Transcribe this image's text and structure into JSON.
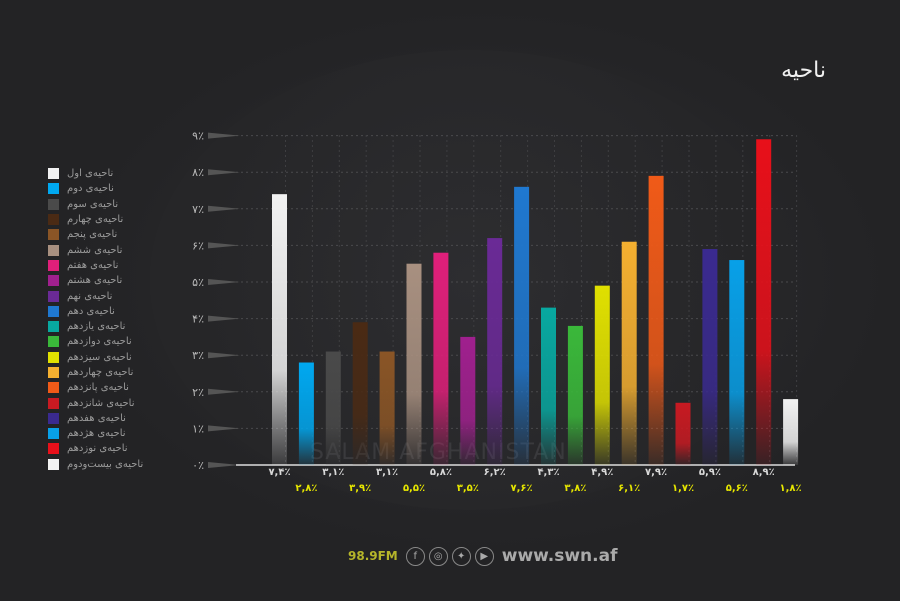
{
  "title": "ناحیه",
  "legend": [
    {
      "label": "ناحیه‌ی اول",
      "color": "#f2f2f2"
    },
    {
      "label": "ناحیه‌ی دوم",
      "color": "#00a8f0"
    },
    {
      "label": "ناحیه‌ی سوم",
      "color": "#4a4a4a"
    },
    {
      "label": "ناحیه‌ی چهارم",
      "color": "#4a2a14"
    },
    {
      "label": "ناحیه‌ی پنجم",
      "color": "#8a5526"
    },
    {
      "label": "ناحیه‌ی ششم",
      "color": "#a89080"
    },
    {
      "label": "ناحیه‌ی هفتم",
      "color": "#e01f7a"
    },
    {
      "label": "ناحیه‌ی هشتم",
      "color": "#a0208e"
    },
    {
      "label": "ناحیه‌ی نهم",
      "color": "#6a2a96"
    },
    {
      "label": "ناحیه‌ی دهم",
      "color": "#1f78d0"
    },
    {
      "label": "ناحیه‌ی یازدهم",
      "color": "#08a8a0"
    },
    {
      "label": "ناحیه‌ی دوازدهم",
      "color": "#3ab83a"
    },
    {
      "label": "ناحیه‌ی سیزدهم",
      "color": "#e0e000"
    },
    {
      "label": "ناحیه‌ی چهاردهم",
      "color": "#f5b030"
    },
    {
      "label": "ناحیه‌ی پانزدهم",
      "color": "#f05a18"
    },
    {
      "label": "ناحیه‌ی شانزدهم",
      "color": "#c81a22"
    },
    {
      "label": "ناحیه‌ی هفدهم",
      "color": "#3a2a90"
    },
    {
      "label": "ناحیه‌ی هژدهم",
      "color": "#08a0e8"
    },
    {
      "label": "ناحیه‌ی نوزدهم",
      "color": "#e8101a"
    },
    {
      "label": "ناحیه‌ی بیست‌ودوم",
      "color": "#f2f2f2"
    }
  ],
  "chart_data": {
    "type": "bar",
    "categories": [
      "ناحیه‌ی اول",
      "ناحیه‌ی دوم",
      "ناحیه‌ی سوم",
      "ناحیه‌ی چهارم",
      "ناحیه‌ی پنجم",
      "ناحیه‌ی ششم",
      "ناحیه‌ی هفتم",
      "ناحیه‌ی هشتم",
      "ناحیه‌ی نهم",
      "ناحیه‌ی دهم",
      "ناحیه‌ی یازدهم",
      "ناحیه‌ی دوازدهم",
      "ناحیه‌ی سیزدهم",
      "ناحیه‌ی چهاردهم",
      "ناحیه‌ی پانزدهم",
      "ناحیه‌ی شانزدهم",
      "ناحیه‌ی هفدهم",
      "ناحیه‌ی هژدهم",
      "ناحیه‌ی نوزدهم",
      "ناحیه‌ی بیست‌ودوم"
    ],
    "values": [
      7.4,
      2.8,
      3.1,
      3.9,
      3.1,
      5.5,
      5.8,
      3.5,
      6.2,
      7.6,
      4.3,
      3.8,
      4.9,
      6.1,
      7.9,
      1.7,
      5.9,
      5.6,
      8.9,
      1.8
    ],
    "data_labels": [
      "۷,۴٪",
      "۲,۸٪",
      "۳,۱٪",
      "۳,۹٪",
      "۳,۱٪",
      "۵,۵٪",
      "۵,۸٪",
      "۳,۵٪",
      "۶,۲٪",
      "۷,۶٪",
      "۴,۳٪",
      "۳,۸٪",
      "۴,۹٪",
      "۶,۱٪",
      "۷,۹٪",
      "۱,۷٪",
      "۵,۹٪",
      "۵,۶٪",
      "۸,۹٪",
      "۱,۸٪"
    ],
    "y_ticks": [
      "۰٪",
      "۱٪",
      "۲٪",
      "۳٪",
      "۴٪",
      "۵٪",
      "۶٪",
      "۷٪",
      "۸٪",
      "۹٪"
    ],
    "ylim": [
      0,
      9
    ],
    "grid": true,
    "legend_position": "left",
    "label_colors": {
      "odd": "#d8d8d8",
      "even": "#e6e600"
    }
  },
  "watermark": "SALAM AFGHANISTAN",
  "footer": {
    "fm": "98.9FM",
    "url": "www.swn.af",
    "icons": [
      "facebook-icon",
      "instagram-icon",
      "twitter-icon",
      "youtube-icon"
    ]
  }
}
